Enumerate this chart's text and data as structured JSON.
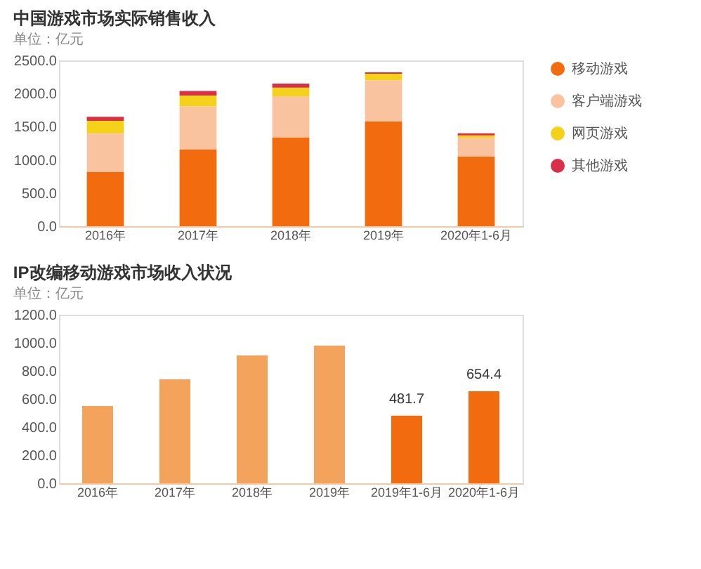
{
  "chart_data": [
    {
      "type": "bar",
      "title": "中国游戏市场实际销售收入",
      "subtitle": "单位：亿元",
      "stacked": true,
      "legend": "right",
      "grid": false,
      "categories": [
        "2016年",
        "2017年",
        "2018年",
        "2019年",
        "2020年1-6月"
      ],
      "series": [
        {
          "name": "移动游戏",
          "color": "#f26b0f",
          "values": [
            820,
            1160,
            1340,
            1580,
            1050
          ]
        },
        {
          "name": "客户端游戏",
          "color": "#f9c3a0",
          "values": [
            580,
            650,
            620,
            620,
            280
          ]
        },
        {
          "name": "网页游戏",
          "color": "#f5d21a",
          "values": [
            190,
            160,
            130,
            100,
            40
          ]
        },
        {
          "name": "其他游戏",
          "color": "#d9304a",
          "values": [
            60,
            70,
            60,
            20,
            30
          ]
        }
      ],
      "ylim": [
        0,
        2500
      ],
      "yticks": [
        {
          "value": 0,
          "label": "0.0"
        },
        {
          "value": 500,
          "label": "500.0"
        },
        {
          "value": 1000,
          "label": "1000.0"
        },
        {
          "value": 1500,
          "label": "1500.0"
        },
        {
          "value": 2000,
          "label": "2000.0"
        },
        {
          "value": 2500,
          "label": "2500.0"
        }
      ]
    },
    {
      "type": "bar",
      "title": "IP改编移动游戏市场收入状况",
      "subtitle": "单位：亿元",
      "legend": false,
      "grid": false,
      "categories": [
        "2016年",
        "2017年",
        "2018年",
        "2019年",
        "2019年1-6月",
        "2020年1-6月"
      ],
      "values": [
        550,
        740,
        910,
        980,
        481.7,
        654.4
      ],
      "colors": [
        "#f3a35c",
        "#f3a35c",
        "#f3a35c",
        "#f3a35c",
        "#f26b0f",
        "#f26b0f"
      ],
      "value_labels": [
        null,
        null,
        null,
        null,
        "481.7",
        "654.4"
      ],
      "ylim": [
        0,
        1200
      ],
      "yticks": [
        {
          "value": 0,
          "label": "0.0"
        },
        {
          "value": 200,
          "label": "200.0"
        },
        {
          "value": 400,
          "label": "400.0"
        },
        {
          "value": 600,
          "label": "600.0"
        },
        {
          "value": 800,
          "label": "800.0"
        },
        {
          "value": 1000,
          "label": "1000.0"
        },
        {
          "value": 1200,
          "label": "1200.0"
        }
      ]
    }
  ]
}
